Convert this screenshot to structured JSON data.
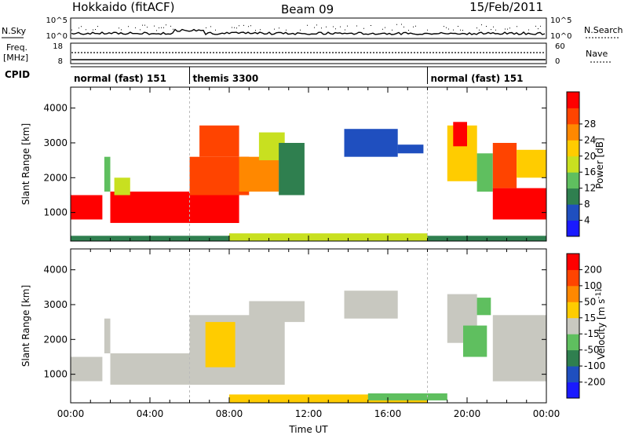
{
  "header": {
    "station": "Hokkaido (fitACF)",
    "beam": "Beam 09",
    "date": "15/Feb/2011"
  },
  "top_panels": {
    "nsky_label": "N.Sky",
    "nsky_tick_top": "10^5",
    "nsky_tick_bottom": "10^0",
    "nsearch_label": "N.Search",
    "nsearch_tick_top": "10^5",
    "nsearch_tick_bottom": "10^0",
    "freq_label": "Freq.",
    "freq_unit": "[MHz]",
    "freq_tick_top": "18",
    "freq_tick_bottom": "8",
    "nave_label": "Nave",
    "nave_tick_top": "60",
    "nave_tick_bottom": "0",
    "cpid_label": "CPID",
    "cpid_segments": [
      {
        "label": "normal (fast) 151",
        "start_hour": 0,
        "end_hour": 6
      },
      {
        "label": "themis 3300",
        "start_hour": 6,
        "end_hour": 18
      },
      {
        "label": "normal (fast) 151",
        "start_hour": 18,
        "end_hour": 24
      }
    ]
  },
  "chart_data": [
    {
      "type": "heatmap",
      "name": "power",
      "xlabel": "",
      "ylabel": "Slant Range [km]",
      "xlim": [
        0,
        24
      ],
      "ylim": [
        180,
        4600
      ],
      "yticks": [
        "1000",
        "2000",
        "3000",
        "4000"
      ],
      "colorbar_label": "Power [dB]",
      "colorbar_ticks": [
        "4",
        "8",
        "12",
        "16",
        "20",
        "24",
        "28"
      ],
      "colors": [
        "#1a1aff",
        "#1f4fbf",
        "#2f7f4f",
        "#5fbf5f",
        "#c8e020",
        "#ffcc00",
        "#ff8800",
        "#ff4400",
        "#ff0000"
      ],
      "regions": [
        {
          "t0": 0.0,
          "t1": 1.6,
          "r0": 800,
          "r1": 1500,
          "level": 8
        },
        {
          "t0": 1.7,
          "t1": 2.0,
          "r0": 1600,
          "r1": 2600,
          "level": 3
        },
        {
          "t0": 2.0,
          "t1": 6.0,
          "r0": 700,
          "r1": 1600,
          "level": 8
        },
        {
          "t0": 2.2,
          "t1": 3.0,
          "r0": 1500,
          "r1": 2000,
          "level": 4
        },
        {
          "t0": 6.0,
          "t1": 8.5,
          "r0": 700,
          "r1": 1500,
          "level": 8
        },
        {
          "t0": 6.0,
          "t1": 9.0,
          "r0": 1500,
          "r1": 2600,
          "level": 7
        },
        {
          "t0": 6.5,
          "t1": 8.5,
          "r0": 2600,
          "r1": 3500,
          "level": 7
        },
        {
          "t0": 8.5,
          "t1": 10.5,
          "r0": 1600,
          "r1": 2600,
          "level": 6
        },
        {
          "t0": 9.5,
          "t1": 10.8,
          "r0": 2500,
          "r1": 3300,
          "level": 4
        },
        {
          "t0": 10.5,
          "t1": 11.8,
          "r0": 1500,
          "r1": 3000,
          "level": 2
        },
        {
          "t0": 13.8,
          "t1": 16.5,
          "r0": 2600,
          "r1": 3400,
          "level": 1
        },
        {
          "t0": 16.5,
          "t1": 17.8,
          "r0": 2700,
          "r1": 2950,
          "level": 1
        },
        {
          "t0": 19.0,
          "t1": 20.5,
          "r0": 1900,
          "r1": 3500,
          "level": 5
        },
        {
          "t0": 19.3,
          "t1": 20.0,
          "r0": 2900,
          "r1": 3600,
          "level": 8
        },
        {
          "t0": 20.5,
          "t1": 21.3,
          "r0": 1600,
          "r1": 2700,
          "level": 3
        },
        {
          "t0": 21.3,
          "t1": 24.0,
          "r0": 800,
          "r1": 1700,
          "level": 8
        },
        {
          "t0": 21.3,
          "t1": 22.5,
          "r0": 1700,
          "r1": 3000,
          "level": 7
        },
        {
          "t0": 22.5,
          "t1": 24.0,
          "r0": 2000,
          "r1": 2800,
          "level": 5
        },
        {
          "t0": 0.0,
          "t1": 24.0,
          "r0": 180,
          "r1": 330,
          "level": 2
        },
        {
          "t0": 8.0,
          "t1": 18.0,
          "r0": 180,
          "r1": 400,
          "level": 4
        }
      ]
    },
    {
      "type": "heatmap",
      "name": "velocity",
      "xlabel": "Time UT",
      "ylabel": "Slant Range [km]",
      "xlim": [
        0,
        24
      ],
      "ylim": [
        180,
        4600
      ],
      "xticks": [
        "00:00",
        "04:00",
        "08:00",
        "12:00",
        "16:00",
        "20:00",
        "00:00"
      ],
      "yticks": [
        "1000",
        "2000",
        "3000",
        "4000"
      ],
      "colorbar_label": "Velocity [m s^-1]",
      "colorbar_ticks": [
        "200",
        "100",
        "50",
        "15",
        "-15",
        "-50",
        "-100",
        "-200"
      ],
      "colors": [
        "#1a1aff",
        "#1f4fbf",
        "#2f7f4f",
        "#5fbf5f",
        "#c8c8c0",
        "#ffcc00",
        "#ff8800",
        "#ff4400",
        "#ff0000"
      ],
      "regions": [
        {
          "t0": 0.0,
          "t1": 1.6,
          "r0": 800,
          "r1": 1500,
          "level": 4
        },
        {
          "t0": 1.7,
          "t1": 2.0,
          "r0": 1600,
          "r1": 2600,
          "level": 4
        },
        {
          "t0": 2.0,
          "t1": 6.0,
          "r0": 700,
          "r1": 1600,
          "level": 4
        },
        {
          "t0": 6.0,
          "t1": 10.8,
          "r0": 700,
          "r1": 2700,
          "level": 4
        },
        {
          "t0": 6.8,
          "t1": 8.3,
          "r0": 1200,
          "r1": 2500,
          "level": 5
        },
        {
          "t0": 9.0,
          "t1": 11.8,
          "r0": 2500,
          "r1": 3100,
          "level": 4
        },
        {
          "t0": 13.8,
          "t1": 16.5,
          "r0": 2600,
          "r1": 3400,
          "level": 4
        },
        {
          "t0": 19.0,
          "t1": 20.5,
          "r0": 1900,
          "r1": 3300,
          "level": 4
        },
        {
          "t0": 19.8,
          "t1": 21.0,
          "r0": 1500,
          "r1": 2400,
          "level": 3
        },
        {
          "t0": 20.5,
          "t1": 21.2,
          "r0": 2700,
          "r1": 3200,
          "level": 3
        },
        {
          "t0": 21.3,
          "t1": 24.0,
          "r0": 800,
          "r1": 2700,
          "level": 4
        },
        {
          "t0": 8.0,
          "t1": 18.0,
          "r0": 180,
          "r1": 420,
          "level": 5
        },
        {
          "t0": 15.0,
          "t1": 19.0,
          "r0": 250,
          "r1": 450,
          "level": 3
        }
      ]
    }
  ]
}
